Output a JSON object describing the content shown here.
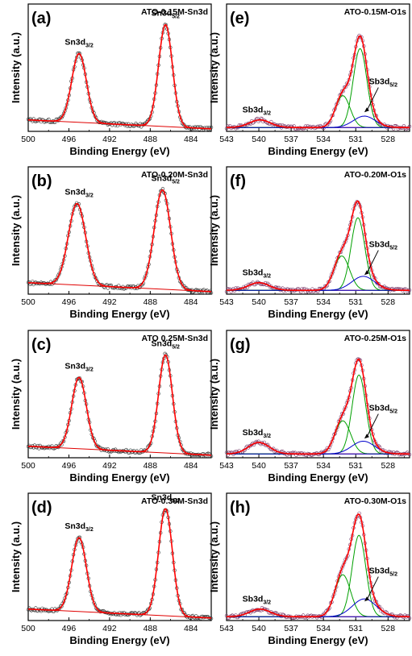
{
  "figure": {
    "ylabel": "Intensity (a.u.)",
    "xlabel": "Binding Energy (eV)"
  },
  "chart_data": [
    {
      "type": "line",
      "letter": "(a)",
      "title": "ATO-0.15M-Sn3d",
      "xlabel": "Binding Energy (eV)",
      "ylabel": "Intensity (a.u.)",
      "xlim": [
        500,
        482
      ],
      "xticks": [
        500,
        496,
        492,
        488,
        484
      ],
      "ylim": [
        0,
        1
      ],
      "series": [
        {
          "name": "Raw data",
          "style": "open-circles",
          "values": "see peaks"
        },
        {
          "name": "Fitted envelope",
          "color": "#ff0000"
        },
        {
          "name": "Background",
          "color": "#ff0000"
        }
      ],
      "peaks": [
        {
          "label": "Sn3d3/2",
          "center": 495.0,
          "height": 0.54,
          "fwhm": 1.7
        },
        {
          "label": "Sn3d5/2",
          "center": 486.5,
          "height": 0.8,
          "fwhm": 1.6
        }
      ],
      "baseline": [
        0.09,
        0.02
      ],
      "annotations": [
        {
          "text": "Sn3d",
          "sub": "3/2"
        },
        {
          "text": "Sn3d",
          "sub": "5/2"
        }
      ]
    },
    {
      "type": "line",
      "letter": "(b)",
      "title": "ATO-0.20M-Sn3d",
      "xlabel": "Binding Energy (eV)",
      "ylabel": "Intensity (a.u.)",
      "xlim": [
        500,
        482
      ],
      "xticks": [
        500,
        496,
        492,
        488,
        484
      ],
      "ylim": [
        0,
        1
      ],
      "series": [
        {
          "name": "Raw data",
          "style": "open-circles"
        },
        {
          "name": "Fitted envelope",
          "color": "#ff0000"
        },
        {
          "name": "Background",
          "color": "#ff0000"
        }
      ],
      "peaks": [
        {
          "label": "Sn3d3/2",
          "center": 495.2,
          "height": 0.64,
          "fwhm": 2.0
        },
        {
          "label": "Sn3d5/2",
          "center": 486.8,
          "height": 0.78,
          "fwhm": 1.9
        }
      ],
      "baseline": [
        0.09,
        0.02
      ],
      "annotations": [
        {
          "text": "Sn3d",
          "sub": "3/2"
        },
        {
          "text": "Sn3d",
          "sub": "5/2"
        }
      ]
    },
    {
      "type": "line",
      "letter": "(c)",
      "title": "ATO 0.25M-Sn3d",
      "xlabel": "Binding Energy (eV)",
      "ylabel": "Intensity (a.u.)",
      "xlim": [
        500,
        482
      ],
      "xticks": [
        500,
        496,
        492,
        488,
        484
      ],
      "ylim": [
        0,
        1
      ],
      "series": [
        {
          "name": "Raw data",
          "style": "open-circles"
        },
        {
          "name": "Fitted envelope",
          "color": "#ff0000"
        },
        {
          "name": "Background",
          "color": "#ff0000"
        }
      ],
      "peaks": [
        {
          "label": "Sn3d3/2",
          "center": 495.0,
          "height": 0.56,
          "fwhm": 1.7
        },
        {
          "label": "Sn3d5/2",
          "center": 486.5,
          "height": 0.77,
          "fwhm": 1.6
        }
      ],
      "baseline": [
        0.09,
        0.02
      ],
      "annotations": [
        {
          "text": "Sn3d",
          "sub": "3/2"
        },
        {
          "text": "Sn3d",
          "sub": "5/2"
        }
      ]
    },
    {
      "type": "line",
      "letter": "(d)",
      "title": "ATO-0.30M-Sn3d",
      "xlabel": "Binding Energy (eV)",
      "ylabel": "Intensity (a.u.)",
      "xlim": [
        500,
        482
      ],
      "xticks": [
        500,
        496,
        492,
        488,
        484
      ],
      "ylim": [
        0,
        1
      ],
      "series": [
        {
          "name": "Raw data",
          "style": "open-circles"
        },
        {
          "name": "Fitted envelope",
          "color": "#ff0000"
        },
        {
          "name": "Background",
          "color": "#ff0000"
        }
      ],
      "peaks": [
        {
          "label": "Sn3d3/2",
          "center": 495.0,
          "height": 0.58,
          "fwhm": 1.7
        },
        {
          "label": "Sn3d5/2",
          "center": 486.5,
          "height": 0.84,
          "fwhm": 1.6
        }
      ],
      "baseline": [
        0.09,
        0.02
      ],
      "annotations": [
        {
          "text": "Sn3d",
          "sub": "3/2"
        },
        {
          "text": "Sn3d",
          "sub": "5/2"
        }
      ]
    },
    {
      "type": "line",
      "letter": "(e)",
      "title": "ATO-0.15M-O1s",
      "xlabel": "Binding Energy (eV)",
      "ylabel": "Intensity (a.u.)",
      "xlim": [
        543,
        526
      ],
      "xticks": [
        543,
        540,
        537,
        534,
        531,
        528
      ],
      "ylim": [
        0,
        1
      ],
      "series": [
        {
          "name": "Raw data",
          "style": "open-circles"
        },
        {
          "name": "Fitted envelope",
          "color": "#ff0000"
        },
        {
          "name": "Component (green)",
          "color": "#00a000"
        },
        {
          "name": "Sb3d (blue)",
          "color": "#0000cc"
        }
      ],
      "components": [
        {
          "color": "#00a000",
          "center": 530.6,
          "height": 0.62,
          "fwhm": 1.5
        },
        {
          "color": "#00a000",
          "center": 532.2,
          "height": 0.25,
          "fwhm": 1.6
        },
        {
          "color": "#0000cc",
          "center": 530.2,
          "height": 0.09,
          "fwhm": 2.4
        },
        {
          "color": "#0000cc",
          "center": 539.9,
          "height": 0.06,
          "fwhm": 2.3
        }
      ],
      "baseline": 0.03,
      "annotations": [
        {
          "text": "Sb3d",
          "sub": "3/2"
        },
        {
          "text": "Sb3d",
          "sub": "5/2"
        }
      ]
    },
    {
      "type": "line",
      "letter": "(f)",
      "title": "ATO-0.20M-O1s",
      "xlabel": "Binding Energy (eV)",
      "ylabel": "Intensity (a.u.)",
      "xlim": [
        543,
        526
      ],
      "xticks": [
        543,
        540,
        537,
        534,
        531,
        528
      ],
      "ylim": [
        0,
        1
      ],
      "series": [
        {
          "name": "Raw data",
          "style": "open-circles"
        },
        {
          "name": "Fitted envelope",
          "color": "#ff0000"
        },
        {
          "name": "Component (green)",
          "color": "#00a000"
        },
        {
          "name": "Sb3d (blue)",
          "color": "#0000cc"
        }
      ],
      "components": [
        {
          "color": "#00a000",
          "center": 530.8,
          "height": 0.57,
          "fwhm": 1.5
        },
        {
          "color": "#00a000",
          "center": 532.3,
          "height": 0.27,
          "fwhm": 1.7
        },
        {
          "color": "#0000cc",
          "center": 530.3,
          "height": 0.11,
          "fwhm": 2.5
        },
        {
          "color": "#0000cc",
          "center": 540.0,
          "height": 0.06,
          "fwhm": 2.3
        }
      ],
      "baseline": 0.03,
      "annotations": [
        {
          "text": "Sb3d",
          "sub": "3/2"
        },
        {
          "text": "Sb3d",
          "sub": "5/2"
        }
      ]
    },
    {
      "type": "line",
      "letter": "(g)",
      "title": "ATO-0.25M-O1s",
      "xlabel": "Binding Energy (eV)",
      "ylabel": "Intensity (a.u.)",
      "xlim": [
        543,
        526
      ],
      "xticks": [
        543,
        540,
        537,
        534,
        531,
        528
      ],
      "ylim": [
        0,
        1
      ],
      "series": [
        {
          "name": "Raw data",
          "style": "open-circles"
        },
        {
          "name": "Fitted envelope",
          "color": "#ff0000"
        },
        {
          "name": "Component (green)",
          "color": "#00a000"
        },
        {
          "name": "Sb3d (blue)",
          "color": "#0000cc"
        }
      ],
      "components": [
        {
          "color": "#00a000",
          "center": 530.7,
          "height": 0.62,
          "fwhm": 1.5
        },
        {
          "color": "#00a000",
          "center": 532.2,
          "height": 0.26,
          "fwhm": 1.7
        },
        {
          "color": "#0000cc",
          "center": 530.3,
          "height": 0.1,
          "fwhm": 2.5
        },
        {
          "color": "#0000cc",
          "center": 540.0,
          "height": 0.09,
          "fwhm": 2.3
        }
      ],
      "baseline": 0.03,
      "annotations": [
        {
          "text": "Sb3d",
          "sub": "3/2"
        },
        {
          "text": "Sb3d",
          "sub": "5/2"
        }
      ]
    },
    {
      "type": "line",
      "letter": "(h)",
      "title": "ATO-0.30M-O1s",
      "xlabel": "Binding Energy (eV)",
      "ylabel": "Intensity (a.u.)",
      "xlim": [
        543,
        526
      ],
      "xticks": [
        543,
        540,
        537,
        534,
        531,
        528
      ],
      "ylim": [
        0,
        1
      ],
      "series": [
        {
          "name": "Raw data",
          "style": "open-circles"
        },
        {
          "name": "Fitted envelope",
          "color": "#ff0000"
        },
        {
          "name": "Component (green)",
          "color": "#00a000"
        },
        {
          "name": "Sb3d (blue)",
          "color": "#0000cc"
        }
      ],
      "components": [
        {
          "color": "#00a000",
          "center": 530.7,
          "height": 0.64,
          "fwhm": 1.5
        },
        {
          "color": "#00a000",
          "center": 532.2,
          "height": 0.33,
          "fwhm": 1.7
        },
        {
          "color": "#0000cc",
          "center": 530.2,
          "height": 0.14,
          "fwhm": 2.6
        },
        {
          "color": "#0000cc",
          "center": 539.9,
          "height": 0.06,
          "fwhm": 2.3
        }
      ],
      "baseline": 0.03,
      "annotations": [
        {
          "text": "Sb3d",
          "sub": "3/2"
        },
        {
          "text": "Sb3d",
          "sub": "5/2"
        }
      ]
    }
  ]
}
